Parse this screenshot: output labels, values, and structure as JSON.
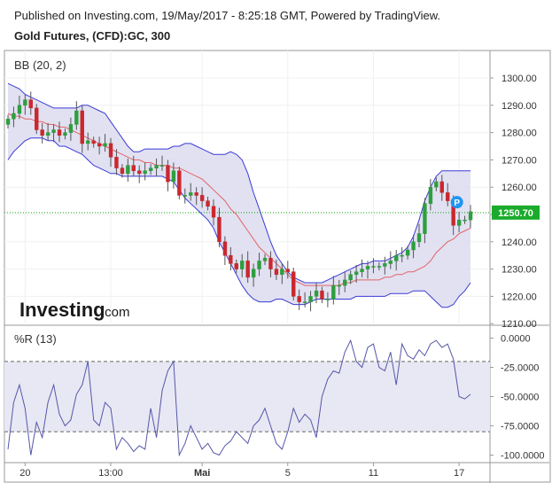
{
  "header": {
    "published": "Published on Investing.com, 19/May/2017 - 8:25:18 GMT, Powered by TradingView.",
    "symbol": "Gold Futures, (CFD):GC, 300"
  },
  "watermark": {
    "brand": "Investing",
    "suffix": ".com"
  },
  "colors": {
    "up_candle": "#2e9e3e",
    "down_candle": "#c9282d",
    "band_line": "#3b3bd6",
    "band_fill": "#dcdcf0",
    "basis_line": "#e36464",
    "wr_line": "#5555aa",
    "wr_fill": "#e8e8f4",
    "price_marker": "#1aab2a",
    "current_price_line": "#11aa11",
    "p_badge": "#2196f3"
  },
  "chart_data": [
    {
      "type": "candlestick",
      "title": "BB (20, 2)",
      "ylim": [
        1210,
        1305
      ],
      "y_ticks": [
        "1300.00",
        "1290.00",
        "1280.00",
        "1270.00",
        "1260.00",
        "1250.00",
        "1240.00",
        "1230.00",
        "1220.00",
        "1210.00"
      ],
      "current_price": 1250.7,
      "current_price_label": "1250.70",
      "badge_label": "P",
      "grid": true,
      "series": [
        {
          "name": "close",
          "values": [
            1285,
            1287,
            1290,
            1292,
            1289,
            1281,
            1279,
            1280,
            1281,
            1279,
            1280,
            1283,
            1288,
            1276,
            1277,
            1276,
            1275,
            1276,
            1271,
            1267,
            1265,
            1268,
            1266,
            1265,
            1266,
            1267,
            1268,
            1268,
            1262,
            1266,
            1257,
            1257,
            1258,
            1257,
            1255,
            1253,
            1249,
            1240,
            1235,
            1232,
            1230,
            1233,
            1227,
            1230,
            1233,
            1234,
            1230,
            1228,
            1230,
            1229,
            1220,
            1218,
            1218,
            1220,
            1222,
            1219,
            1219,
            1224,
            1224,
            1226,
            1228,
            1229,
            1230,
            1231,
            1231,
            1231,
            1232,
            1233,
            1235,
            1235,
            1237,
            1240,
            1243,
            1254,
            1260,
            1262,
            1258,
            1255,
            1246,
            1248,
            1248,
            1251
          ]
        },
        {
          "name": "BB upper",
          "values": [
            1298,
            1297,
            1296,
            1294,
            1293,
            1292,
            1291,
            1290,
            1289,
            1289,
            1289,
            1289,
            1289,
            1290,
            1290,
            1289,
            1288,
            1287,
            1284,
            1281,
            1278,
            1275,
            1273,
            1273,
            1274,
            1274,
            1274,
            1274,
            1274,
            1275,
            1275,
            1276,
            1276,
            1275,
            1274,
            1273,
            1272,
            1272,
            1272,
            1273,
            1272,
            1270,
            1265,
            1258,
            1252,
            1246,
            1240,
            1235,
            1232,
            1229,
            1227,
            1226,
            1225,
            1225,
            1225,
            1225,
            1226,
            1227,
            1228,
            1229,
            1230,
            1231,
            1232,
            1232,
            1233,
            1233,
            1233,
            1234,
            1235,
            1236,
            1238,
            1242,
            1248,
            1255,
            1260,
            1264,
            1266,
            1266,
            1266,
            1266,
            1266,
            1266
          ]
        },
        {
          "name": "BB basis",
          "values": [
            1287,
            1286,
            1286,
            1285,
            1285,
            1284,
            1284,
            1283,
            1283,
            1282,
            1282,
            1281,
            1280,
            1279,
            1278,
            1277,
            1276,
            1275,
            1274,
            1273,
            1272,
            1271,
            1270,
            1270,
            1269,
            1269,
            1268,
            1268,
            1268,
            1267,
            1267,
            1266,
            1265,
            1264,
            1263,
            1261,
            1259,
            1257,
            1255,
            1252,
            1250,
            1247,
            1244,
            1241,
            1238,
            1236,
            1234,
            1232,
            1230,
            1228,
            1226,
            1225,
            1224,
            1224,
            1224,
            1224,
            1224,
            1224,
            1224,
            1225,
            1225,
            1226,
            1226,
            1226,
            1226,
            1226,
            1227,
            1227,
            1228,
            1228,
            1229,
            1229,
            1230,
            1231,
            1233,
            1236,
            1238,
            1240,
            1241,
            1243,
            1244,
            1245
          ]
        },
        {
          "name": "BB lower",
          "values": [
            1270,
            1273,
            1275,
            1277,
            1278,
            1278,
            1278,
            1277,
            1277,
            1275,
            1275,
            1274,
            1273,
            1272,
            1270,
            1268,
            1267,
            1266,
            1265,
            1265,
            1264,
            1264,
            1264,
            1264,
            1264,
            1264,
            1264,
            1264,
            1263,
            1262,
            1259,
            1256,
            1254,
            1252,
            1250,
            1248,
            1245,
            1240,
            1236,
            1232,
            1228,
            1224,
            1221,
            1219,
            1218,
            1218,
            1218,
            1219,
            1219,
            1218,
            1217,
            1217,
            1217,
            1218,
            1219,
            1219,
            1219,
            1219,
            1219,
            1219,
            1219,
            1220,
            1220,
            1220,
            1220,
            1220,
            1220,
            1221,
            1221,
            1221,
            1221,
            1222,
            1222,
            1222,
            1220,
            1218,
            1216,
            1216,
            1217,
            1220,
            1222,
            1225
          ]
        }
      ]
    },
    {
      "type": "line",
      "title": "%R (13)",
      "ylim": [
        -102,
        2
      ],
      "y_ticks": [
        "0.0000",
        "-25.0000",
        "-50.0000",
        "-75.0000",
        "-100.0000"
      ],
      "reference_levels": [
        -20,
        -80
      ],
      "series": [
        {
          "name": "%R",
          "values": [
            -95,
            -55,
            -40,
            -60,
            -100,
            -72,
            -85,
            -55,
            -40,
            -65,
            -75,
            -70,
            -48,
            -40,
            -20,
            -70,
            -75,
            -55,
            -60,
            -95,
            -85,
            -90,
            -97,
            -92,
            -95,
            -60,
            -85,
            -45,
            -28,
            -20,
            -100,
            -90,
            -75,
            -85,
            -95,
            -90,
            -98,
            -100,
            -92,
            -88,
            -80,
            -85,
            -90,
            -75,
            -70,
            -60,
            -75,
            -90,
            -95,
            -80,
            -60,
            -72,
            -65,
            -70,
            -85,
            -50,
            -35,
            -28,
            -30,
            -12,
            -2,
            -20,
            -25,
            -8,
            -5,
            -25,
            -28,
            -12,
            -40,
            -5,
            -15,
            -18,
            -10,
            -15,
            -5,
            -2,
            -8,
            -5,
            -18,
            -50,
            -52,
            -48
          ]
        }
      ]
    }
  ],
  "x_axis": {
    "ticks": [
      "20",
      "13:00",
      "Mai",
      "5",
      "11",
      "17"
    ]
  }
}
